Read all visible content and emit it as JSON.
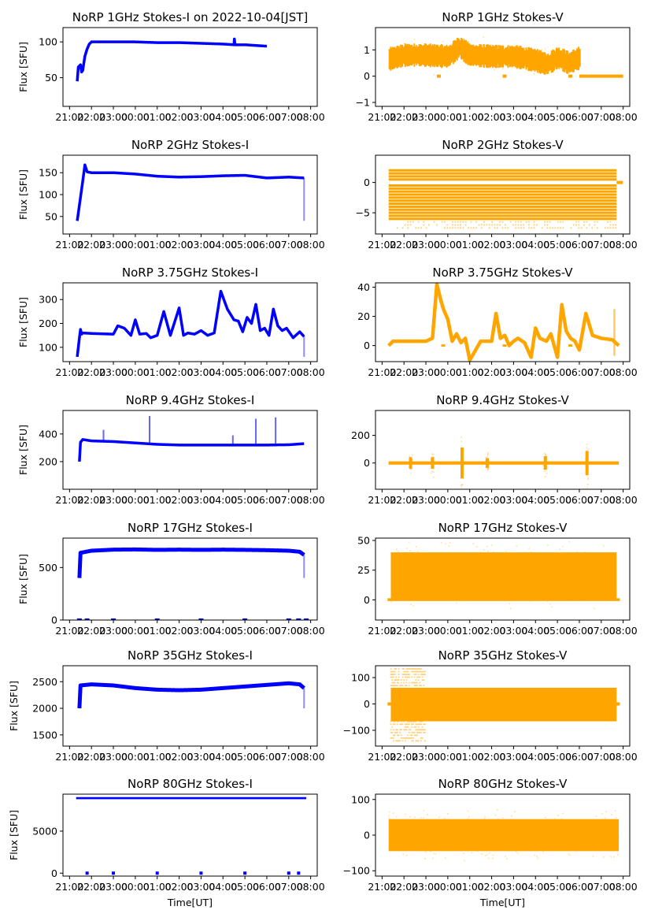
{
  "figure": {
    "x_tick_labels": [
      "21:00",
      "22:00",
      "23:00",
      "00:00",
      "01:00",
      "02:00",
      "03:00",
      "04:00",
      "05:00",
      "06:00",
      "07:00",
      "08:00"
    ],
    "x_label": "Time[UT]",
    "y_label": "Flux [SFU]",
    "colors": {
      "stokes_i": "#0000ff",
      "stokes_v": "#ffa500"
    }
  },
  "chart_data": [
    {
      "id": "i1",
      "type": "scatter",
      "title": "NoRP 1GHz Stokes-I on 2022-10-04[JST]",
      "ylabel": "Flux [SFU]",
      "xlabel": "",
      "ylim": [
        10,
        120
      ],
      "yticks": [
        50,
        100
      ],
      "xlim_hours": [
        -0.3,
        11.3
      ],
      "color": "#0000ff",
      "series": [
        {
          "name": "Stokes-I",
          "x": [
            0.35,
            0.4,
            0.5,
            0.55,
            0.6,
            0.7,
            0.8,
            0.9,
            1.0,
            2.0,
            3.0,
            4.0,
            5.0,
            6.0,
            7.0,
            7.5,
            7.52,
            7.55,
            8.0,
            9.0
          ],
          "y": [
            45,
            65,
            68,
            58,
            60,
            80,
            90,
            97,
            100,
            100,
            100,
            99,
            99,
            98,
            97,
            96,
            104,
            96,
            96,
            94
          ]
        }
      ]
    },
    {
      "id": "v1",
      "type": "scatter",
      "title": "NoRP 1GHz Stokes-V",
      "ylabel": "",
      "xlabel": "",
      "ylim": [
        -1.15,
        1.85
      ],
      "yticks": [
        -1,
        0,
        1
      ],
      "xlim_hours": [
        -0.3,
        11.3
      ],
      "color": "#ffa500",
      "series": [
        {
          "name": "Stokes-V",
          "x": [
            0.3,
            1,
            2,
            3,
            3.5,
            4,
            5,
            6,
            7,
            7.5,
            8,
            8.5,
            9
          ],
          "y": [
            0.65,
            0.8,
            0.8,
            0.75,
            1.1,
            0.8,
            0.75,
            0.75,
            0.6,
            0.45,
            0.7,
            0.5,
            0.7
          ],
          "band": 0.35,
          "end_x": 9,
          "zero_line": [
            9,
            11
          ]
        }
      ]
    },
    {
      "id": "i2",
      "type": "scatter",
      "title": "NoRP 2GHz Stokes-I",
      "ylabel": "Flux [SFU]",
      "xlabel": "",
      "ylim": [
        10,
        190
      ],
      "yticks": [
        50,
        100,
        150
      ],
      "xlim_hours": [
        -0.3,
        11.3
      ],
      "color": "#0000ff",
      "series": [
        {
          "name": "Stokes-I",
          "x": [
            0.35,
            0.6,
            0.7,
            0.8,
            1.0,
            2.0,
            3.0,
            4.0,
            5.0,
            6.0,
            7.0,
            8.0,
            9.0,
            10.0,
            10.7
          ],
          "y": [
            40,
            130,
            168,
            152,
            150,
            150,
            147,
            142,
            140,
            141,
            143,
            144,
            138,
            140,
            138
          ]
        }
      ]
    },
    {
      "id": "v2",
      "type": "scatter",
      "title": "NoRP 2GHz Stokes-V",
      "ylabel": "",
      "xlabel": "",
      "ylim": [
        -8.5,
        4.5
      ],
      "yticks": [
        -5,
        0
      ],
      "xlim_hours": [
        -0.3,
        11.3
      ],
      "color": "#ffa500",
      "series": [
        {
          "name": "Stokes-V",
          "levels": [
            -7.5,
            -7,
            -6.5,
            -6,
            -5.5,
            -5,
            -4.5,
            -4,
            -3.5,
            -3,
            -2.5,
            -2,
            -1.5,
            -1,
            -0.5,
            0.5,
            1,
            1.5,
            2
          ],
          "x_range": [
            0.3,
            10.7
          ]
        }
      ]
    },
    {
      "id": "i3",
      "type": "line",
      "title": "NoRP 3.75GHz Stokes-I",
      "ylabel": "Flux [SFU]",
      "xlabel": "",
      "ylim": [
        40,
        370
      ],
      "yticks": [
        100,
        200,
        300
      ],
      "xlim_hours": [
        -0.3,
        11.3
      ],
      "color": "#0000ff",
      "series": [
        {
          "name": "Stokes-I",
          "x": [
            0.35,
            0.45,
            0.5,
            0.55,
            0.6,
            1,
            2,
            2.2,
            2.5,
            2.8,
            3,
            3.2,
            3.5,
            3.7,
            4,
            4.3,
            4.6,
            5,
            5.2,
            5.4,
            5.7,
            6,
            6.3,
            6.6,
            6.9,
            7.2,
            7.5,
            7.7,
            7.9,
            8.1,
            8.3,
            8.5,
            8.7,
            8.9,
            9.1,
            9.3,
            9.5,
            9.7,
            9.9,
            10.2,
            10.5,
            10.7
          ],
          "y": [
            60,
            140,
            175,
            155,
            160,
            158,
            155,
            190,
            180,
            150,
            215,
            155,
            158,
            140,
            150,
            250,
            150,
            265,
            150,
            160,
            155,
            170,
            150,
            160,
            335,
            260,
            215,
            210,
            165,
            225,
            200,
            280,
            170,
            180,
            150,
            260,
            190,
            170,
            180,
            140,
            165,
            145
          ]
        }
      ]
    },
    {
      "id": "v3",
      "type": "line",
      "title": "NoRP 3.75GHz Stokes-V",
      "ylabel": "",
      "xlabel": "",
      "ylim": [
        -11,
        43
      ],
      "yticks": [
        0,
        20,
        40
      ],
      "xlim_hours": [
        -0.3,
        11.3
      ],
      "color": "#ffa500",
      "series": [
        {
          "name": "Stokes-V",
          "x": [
            0.3,
            0.5,
            1,
            1.5,
            2,
            2.3,
            2.5,
            2.7,
            2.8,
            3,
            3.2,
            3.4,
            3.6,
            3.8,
            4,
            4.5,
            4.8,
            5,
            5.2,
            5.4,
            5.6,
            5.8,
            6,
            6.2,
            6.5,
            6.8,
            7,
            7.2,
            7.5,
            7.7,
            8,
            8.2,
            8.4,
            8.6,
            8.8,
            9,
            9.3,
            9.6,
            10,
            10.5,
            10.8
          ],
          "y": [
            0,
            3,
            3,
            3,
            3,
            5,
            42,
            30,
            25,
            18,
            3,
            8,
            2,
            5,
            -10,
            3,
            3,
            3,
            22,
            5,
            7,
            0,
            3,
            5,
            2,
            -8,
            12,
            5,
            3,
            8,
            -8,
            28,
            10,
            5,
            3,
            -3,
            22,
            7,
            5,
            4,
            0
          ]
        }
      ]
    },
    {
      "id": "i4",
      "type": "scatter",
      "title": "NoRP 9.4GHz Stokes-I",
      "ylabel": "Flux [SFU]",
      "xlabel": "",
      "ylim": [
        0,
        570
      ],
      "yticks": [
        200,
        400
      ],
      "xlim_hours": [
        -0.3,
        11.3
      ],
      "color": "#0000ff",
      "series": [
        {
          "name": "Stokes-I",
          "x": [
            0.45,
            0.5,
            0.6,
            1,
            2,
            3,
            4,
            5,
            6,
            7,
            8,
            9,
            10,
            10.7
          ],
          "y": [
            200,
            340,
            360,
            350,
            345,
            335,
            325,
            320,
            320,
            320,
            320,
            320,
            322,
            330
          ],
          "spikes": [
            {
              "x": 3.65,
              "y": 530
            },
            {
              "x": 8.5,
              "y": 510
            },
            {
              "x": 9.4,
              "y": 520
            },
            {
              "x": 7.45,
              "y": 390
            },
            {
              "x": 1.55,
              "y": 430
            }
          ]
        }
      ]
    },
    {
      "id": "v4",
      "type": "scatter",
      "title": "NoRP 9.4GHz Stokes-V",
      "ylabel": "",
      "xlabel": "",
      "ylim": [
        -190,
        380
      ],
      "yticks": [
        0,
        200
      ],
      "xlim_hours": [
        -0.3,
        11.3
      ],
      "color": "#ffa500",
      "series": [
        {
          "name": "Stokes-V",
          "x_range": [
            0.3,
            10.8
          ],
          "y": 0,
          "bursts": [
            {
              "x": 2.3,
              "amp": 120
            },
            {
              "x": 3.65,
              "amp": 320
            },
            {
              "x": 1.3,
              "amp": 120
            },
            {
              "x": 7.45,
              "amp": 140
            },
            {
              "x": 9.35,
              "amp": 250
            },
            {
              "x": 4.8,
              "amp": 100
            }
          ]
        }
      ]
    },
    {
      "id": "i5",
      "type": "scatter",
      "title": "NoRP 17GHz Stokes-I",
      "ylabel": "Flux [SFU]",
      "xlabel": "",
      "ylim": [
        0,
        780
      ],
      "yticks": [
        0,
        500
      ],
      "xlim_hours": [
        -0.3,
        11.3
      ],
      "color": "#0000ff",
      "series": [
        {
          "name": "Stokes-I",
          "x": [
            0.45,
            0.5,
            1,
            2,
            3,
            4,
            5,
            6,
            7,
            8,
            9,
            10,
            10.5,
            10.7
          ],
          "y": [
            400,
            640,
            660,
            670,
            672,
            668,
            670,
            668,
            670,
            668,
            665,
            660,
            650,
            620
          ],
          "zeros": [
            0.45,
            0.8,
            2.0,
            4.0,
            6.0,
            8.0,
            10.0,
            10.45,
            10.8
          ]
        }
      ]
    },
    {
      "id": "v5",
      "type": "scatter",
      "title": "NoRP 17GHz Stokes-V",
      "ylabel": "",
      "xlabel": "",
      "ylim": [
        -17,
        52
      ],
      "yticks": [
        0,
        25,
        50
      ],
      "xlim_hours": [
        -0.3,
        11.3
      ],
      "color": "#ffa500",
      "series": [
        {
          "name": "Stokes-V",
          "x_range": [
            0.4,
            10.7
          ],
          "center": 20,
          "band": 20
        }
      ]
    },
    {
      "id": "i6",
      "type": "scatter",
      "title": "NoRP 35GHz Stokes-I",
      "ylabel": "Flux [SFU]",
      "xlabel": "",
      "ylim": [
        1290,
        2800
      ],
      "yticks": [
        1500,
        2000,
        2500
      ],
      "xlim_hours": [
        -0.3,
        11.3
      ],
      "color": "#0000ff",
      "series": [
        {
          "name": "Stokes-I",
          "x": [
            0.45,
            0.5,
            1,
            2,
            3,
            4,
            5,
            6,
            7,
            8,
            9,
            10,
            10.5,
            10.7
          ],
          "y": [
            2000,
            2430,
            2450,
            2430,
            2380,
            2350,
            2340,
            2350,
            2380,
            2410,
            2440,
            2470,
            2450,
            2380
          ]
        }
      ]
    },
    {
      "id": "v6",
      "type": "scatter",
      "title": "NoRP 35GHz Stokes-V",
      "ylabel": "",
      "xlabel": "",
      "ylim": [
        -160,
        145
      ],
      "yticks": [
        -100,
        0,
        100
      ],
      "xlim_hours": [
        -0.3,
        11.3
      ],
      "color": "#ffa500",
      "series": [
        {
          "name": "Stokes-V",
          "x_range": [
            0.4,
            10.7
          ],
          "band": 65,
          "early_band": 140,
          "early_x": [
            0.4,
            2.0
          ]
        }
      ]
    },
    {
      "id": "i7",
      "type": "scatter",
      "title": "NoRP 80GHz Stokes-I",
      "ylabel": "Flux [SFU]",
      "xlabel": "Time[UT]",
      "ylim": [
        -350,
        9400
      ],
      "yticks": [
        0,
        5000
      ],
      "xlim_hours": [
        -0.3,
        11.3
      ],
      "color": "#0000ff",
      "series": [
        {
          "name": "Stokes-I",
          "x_range": [
            0.3,
            10.8
          ],
          "y": 8900,
          "zeros": [
            0.8,
            2.0,
            4.0,
            6.0,
            8.0,
            10.0,
            10.45
          ]
        }
      ]
    },
    {
      "id": "v7",
      "type": "scatter",
      "title": "NoRP 80GHz Stokes-V",
      "ylabel": "",
      "xlabel": "Time[UT]",
      "ylim": [
        -115,
        115
      ],
      "yticks": [
        -100,
        0,
        100
      ],
      "xlim_hours": [
        -0.3,
        11.3
      ],
      "color": "#ffa500",
      "series": [
        {
          "name": "Stokes-V",
          "x_range": [
            0.3,
            10.8
          ],
          "center": 0,
          "band": 45
        }
      ]
    }
  ]
}
